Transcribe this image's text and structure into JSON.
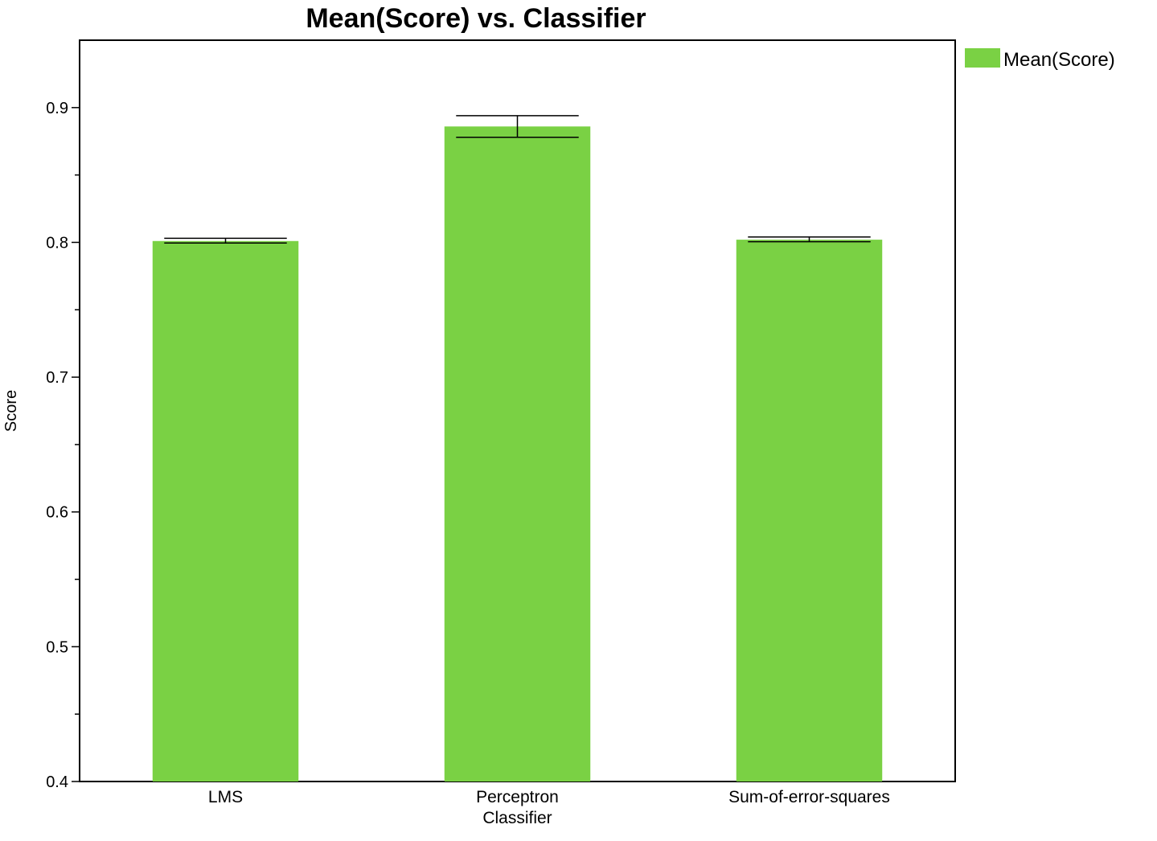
{
  "chart_data": {
    "type": "bar",
    "title": "Mean(Score) vs. Classifier",
    "xlabel": "",
    "ylabel": "Score",
    "ylim": [
      0.4,
      0.95
    ],
    "yticks": [
      "0.4",
      "0.5",
      "0.6",
      "0.7",
      "0.8",
      "0.9"
    ],
    "categories": [
      [
        "LMS"
      ],
      [
        "Perceptron",
        "Classifier"
      ],
      [
        "Sum-of-error-squares"
      ]
    ],
    "series": [
      {
        "name": "Mean(Score)",
        "color": "#7ad144",
        "values": [
          0.801,
          0.886,
          0.802
        ],
        "error_low": [
          0.7995,
          0.878,
          0.8005
        ],
        "error_high": [
          0.803,
          0.894,
          0.804
        ]
      }
    ],
    "legend": {
      "position": "top-right"
    },
    "grid": false
  }
}
